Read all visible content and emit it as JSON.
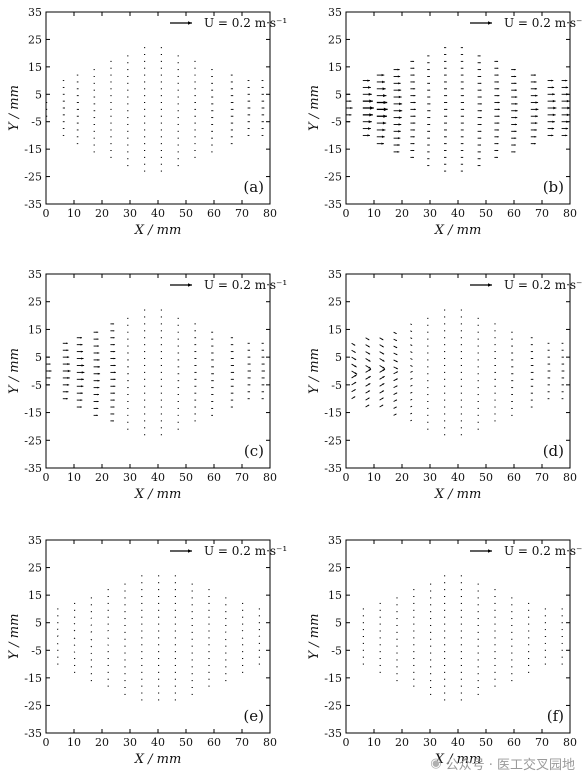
{
  "watermark": {
    "text": "公众号 · 医工交叉园地",
    "icon": "wechat-icon"
  },
  "chart_data": [
    {
      "type": "quiver",
      "panel": "(a)",
      "title": "",
      "xlabel": "X / mm",
      "ylabel": "Y / mm",
      "xlim": [
        0,
        80
      ],
      "ylim": [
        -35,
        35
      ],
      "xticks": [
        0,
        10,
        20,
        30,
        40,
        50,
        60,
        70,
        80
      ],
      "yticks": [
        -35,
        -25,
        -15,
        -5,
        5,
        15,
        25,
        35
      ],
      "reference_vector": {
        "U": 0.2,
        "label": "U = 0.2 m·s⁻¹"
      },
      "columns": [
        {
          "x": 0,
          "half_height": 3,
          "u": 0.01,
          "v": 0
        },
        {
          "x": 6,
          "half_height": 10,
          "u": 0.02,
          "v": 0
        },
        {
          "x": 11,
          "half_height": 13,
          "u": 0.02,
          "v": 0
        },
        {
          "x": 17,
          "half_height": 16,
          "u": 0.015,
          "v": 0
        },
        {
          "x": 23,
          "half_height": 18,
          "u": 0.01,
          "v": 0
        },
        {
          "x": 29,
          "half_height": 21,
          "u": 0.005,
          "v": 0
        },
        {
          "x": 35,
          "half_height": 23,
          "u": 0.005,
          "v": 0
        },
        {
          "x": 41,
          "half_height": 23,
          "u": 0.005,
          "v": 0
        },
        {
          "x": 47,
          "half_height": 21,
          "u": 0.01,
          "v": 0
        },
        {
          "x": 53,
          "half_height": 18,
          "u": 0.015,
          "v": 0
        },
        {
          "x": 59,
          "half_height": 16,
          "u": 0.02,
          "v": 0
        },
        {
          "x": 66,
          "half_height": 13,
          "u": 0.025,
          "v": 0
        },
        {
          "x": 72,
          "half_height": 10,
          "u": 0.025,
          "v": 0
        },
        {
          "x": 77,
          "half_height": 10,
          "u": 0.025,
          "v": 0
        }
      ]
    },
    {
      "type": "quiver",
      "panel": "(b)",
      "title": "",
      "xlabel": "X / mm",
      "ylabel": "Y / mm",
      "xlim": [
        0,
        80
      ],
      "ylim": [
        -35,
        35
      ],
      "xticks": [
        0,
        10,
        20,
        30,
        40,
        50,
        60,
        70,
        80
      ],
      "yticks": [
        -35,
        -25,
        -15,
        -5,
        5,
        15,
        25,
        35
      ],
      "reference_vector": {
        "U": 0.2,
        "label": "U = 0.2 m·s⁻¹"
      },
      "columns": [
        {
          "x": 0,
          "half_height": 5,
          "u": 0.06,
          "v": 0
        },
        {
          "x": 6,
          "half_height": 10,
          "u": 0.1,
          "v": 0
        },
        {
          "x": 11,
          "half_height": 13,
          "u": 0.1,
          "v": 0
        },
        {
          "x": 17,
          "half_height": 16,
          "u": 0.08,
          "v": 0
        },
        {
          "x": 23,
          "half_height": 18,
          "u": 0.05,
          "v": 0
        },
        {
          "x": 29,
          "half_height": 21,
          "u": 0.03,
          "v": 0
        },
        {
          "x": 35,
          "half_height": 23,
          "u": 0.03,
          "v": 0
        },
        {
          "x": 41,
          "half_height": 23,
          "u": 0.03,
          "v": 0
        },
        {
          "x": 47,
          "half_height": 21,
          "u": 0.04,
          "v": 0
        },
        {
          "x": 53,
          "half_height": 18,
          "u": 0.05,
          "v": 0
        },
        {
          "x": 59,
          "half_height": 16,
          "u": 0.06,
          "v": 0
        },
        {
          "x": 66,
          "half_height": 13,
          "u": 0.07,
          "v": 0
        },
        {
          "x": 72,
          "half_height": 10,
          "u": 0.08,
          "v": 0
        },
        {
          "x": 77,
          "half_height": 10,
          "u": 0.08,
          "v": 0
        }
      ]
    },
    {
      "type": "quiver",
      "panel": "(c)",
      "title": "",
      "xlabel": "X / mm",
      "ylabel": "Y / mm",
      "xlim": [
        0,
        80
      ],
      "ylim": [
        -35,
        35
      ],
      "xticks": [
        0,
        10,
        20,
        30,
        40,
        50,
        60,
        70,
        80
      ],
      "yticks": [
        -35,
        -25,
        -15,
        -5,
        5,
        15,
        25,
        35
      ],
      "reference_vector": {
        "U": 0.2,
        "label": "U = 0.2 m·s⁻¹"
      },
      "columns": [
        {
          "x": 0,
          "half_height": 5,
          "u": 0.05,
          "v": 0
        },
        {
          "x": 6,
          "half_height": 10,
          "u": 0.07,
          "v": 0
        },
        {
          "x": 11,
          "half_height": 13,
          "u": 0.07,
          "v": 0
        },
        {
          "x": 17,
          "half_height": 16,
          "u": 0.06,
          "v": 0
        },
        {
          "x": 23,
          "half_height": 18,
          "u": 0.05,
          "v": 0
        },
        {
          "x": 29,
          "half_height": 21,
          "u": 0.015,
          "v": 0
        },
        {
          "x": 35,
          "half_height": 23,
          "u": 0.008,
          "v": 0
        },
        {
          "x": 41,
          "half_height": 23,
          "u": 0.01,
          "v": 0
        },
        {
          "x": 47,
          "half_height": 21,
          "u": 0.015,
          "v": 0
        },
        {
          "x": 53,
          "half_height": 18,
          "u": 0.02,
          "v": 0
        },
        {
          "x": 59,
          "half_height": 16,
          "u": 0.025,
          "v": 0
        },
        {
          "x": 66,
          "half_height": 13,
          "u": 0.03,
          "v": 0
        },
        {
          "x": 72,
          "half_height": 10,
          "u": 0.03,
          "v": 0
        },
        {
          "x": 77,
          "half_height": 10,
          "u": 0.03,
          "v": 0
        }
      ]
    },
    {
      "type": "quiver",
      "panel": "(d)",
      "title": "",
      "xlabel": "X / mm",
      "ylabel": "Y / mm",
      "xlim": [
        0,
        80
      ],
      "ylim": [
        -35,
        35
      ],
      "xticks": [
        0,
        10,
        20,
        30,
        40,
        50,
        60,
        70,
        80
      ],
      "yticks": [
        -35,
        -25,
        -15,
        -5,
        5,
        15,
        25,
        35
      ],
      "reference_vector": {
        "U": 0.2,
        "label": "U = 0.2 m·s⁻¹"
      },
      "columns": [
        {
          "x": 2,
          "half_height": 10,
          "u": 0.05,
          "v": -0.03
        },
        {
          "x": 7,
          "half_height": 13,
          "u": 0.05,
          "v": -0.03
        },
        {
          "x": 12,
          "half_height": 13,
          "u": 0.05,
          "v": -0.03
        },
        {
          "x": 17,
          "half_height": 16,
          "u": 0.04,
          "v": -0.02
        },
        {
          "x": 23,
          "half_height": 18,
          "u": 0.02,
          "v": -0.01
        },
        {
          "x": 29,
          "half_height": 21,
          "u": 0.005,
          "v": 0
        },
        {
          "x": 35,
          "half_height": 23,
          "u": 0.005,
          "v": 0
        },
        {
          "x": 41,
          "half_height": 23,
          "u": 0.005,
          "v": 0
        },
        {
          "x": 47,
          "half_height": 21,
          "u": 0.01,
          "v": 0
        },
        {
          "x": 53,
          "half_height": 18,
          "u": 0.015,
          "v": 0
        },
        {
          "x": 59,
          "half_height": 16,
          "u": 0.02,
          "v": 0
        },
        {
          "x": 66,
          "half_height": 13,
          "u": 0.025,
          "v": 0
        },
        {
          "x": 72,
          "half_height": 10,
          "u": 0.025,
          "v": 0
        },
        {
          "x": 77,
          "half_height": 10,
          "u": 0.025,
          "v": 0
        }
      ]
    },
    {
      "type": "quiver",
      "panel": "(e)",
      "title": "",
      "xlabel": "X / mm",
      "ylabel": "Y / mm",
      "xlim": [
        0,
        80
      ],
      "ylim": [
        -35,
        35
      ],
      "xticks": [
        0,
        10,
        20,
        30,
        40,
        50,
        60,
        70,
        80
      ],
      "yticks": [
        -35,
        -25,
        -15,
        -5,
        5,
        15,
        25,
        35
      ],
      "reference_vector": {
        "U": 0.2,
        "label": "U = 0.2 m·s⁻¹"
      },
      "columns": [
        {
          "x": 4,
          "half_height": 10,
          "u": 0.01,
          "v": 0.008
        },
        {
          "x": 10,
          "half_height": 13,
          "u": 0.01,
          "v": 0.008
        },
        {
          "x": 16,
          "half_height": 16,
          "u": 0.01,
          "v": 0.008
        },
        {
          "x": 22,
          "half_height": 18,
          "u": 0.01,
          "v": 0.006
        },
        {
          "x": 28,
          "half_height": 21,
          "u": 0.005,
          "v": 0.004
        },
        {
          "x": 34,
          "half_height": 23,
          "u": 0.003,
          "v": 0.002
        },
        {
          "x": 40,
          "half_height": 23,
          "u": 0.003,
          "v": 0.002
        },
        {
          "x": 46,
          "half_height": 23,
          "u": 0.004,
          "v": 0.003
        },
        {
          "x": 52,
          "half_height": 21,
          "u": 0.006,
          "v": 0.004
        },
        {
          "x": 58,
          "half_height": 18,
          "u": 0.008,
          "v": 0.005
        },
        {
          "x": 64,
          "half_height": 16,
          "u": 0.01,
          "v": 0.006
        },
        {
          "x": 70,
          "half_height": 13,
          "u": 0.01,
          "v": 0.006
        },
        {
          "x": 76,
          "half_height": 10,
          "u": 0.01,
          "v": 0.006
        }
      ]
    },
    {
      "type": "quiver",
      "panel": "(f)",
      "title": "",
      "xlabel": "X / mm",
      "ylabel": "Y / mm",
      "xlim": [
        0,
        80
      ],
      "ylim": [
        -35,
        35
      ],
      "xticks": [
        0,
        10,
        20,
        30,
        40,
        50,
        60,
        70,
        80
      ],
      "yticks": [
        -35,
        -25,
        -15,
        -5,
        5,
        15,
        25,
        35
      ],
      "reference_vector": {
        "U": 0.2,
        "label": "U = 0.2 m·s⁻¹"
      },
      "columns": [
        {
          "x": 6,
          "half_height": 10,
          "u": 0.01,
          "v": 0
        },
        {
          "x": 12,
          "half_height": 13,
          "u": 0.01,
          "v": 0
        },
        {
          "x": 18,
          "half_height": 16,
          "u": 0.01,
          "v": 0
        },
        {
          "x": 24,
          "half_height": 18,
          "u": 0.008,
          "v": 0
        },
        {
          "x": 30,
          "half_height": 21,
          "u": 0.006,
          "v": 0
        },
        {
          "x": 35,
          "half_height": 23,
          "u": 0.004,
          "v": 0
        },
        {
          "x": 41,
          "half_height": 23,
          "u": 0.004,
          "v": 0
        },
        {
          "x": 47,
          "half_height": 21,
          "u": 0.006,
          "v": 0
        },
        {
          "x": 53,
          "half_height": 18,
          "u": 0.008,
          "v": 0
        },
        {
          "x": 59,
          "half_height": 16,
          "u": 0.01,
          "v": 0
        },
        {
          "x": 65,
          "half_height": 13,
          "u": 0.012,
          "v": 0
        },
        {
          "x": 71,
          "half_height": 10,
          "u": 0.012,
          "v": 0
        },
        {
          "x": 77,
          "half_height": 10,
          "u": 0.012,
          "v": 0
        }
      ]
    }
  ]
}
